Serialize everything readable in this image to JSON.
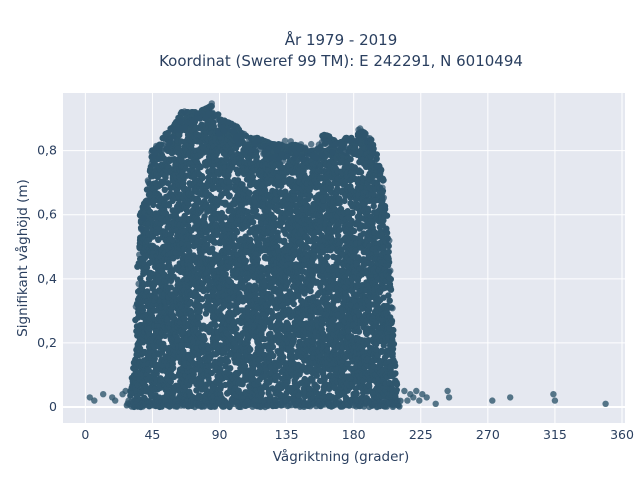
{
  "chart_data": {
    "type": "scatter",
    "title_line1": "År 1979 - 2019",
    "title_line2": "Koordinat (Sweref 99 TM): E 242291, N 6010494",
    "xlabel": "Vågriktning (grader)",
    "ylabel": "Signifikant våghöjd (m)",
    "xlim": [
      -15,
      362
    ],
    "ylim": [
      -0.05,
      0.98
    ],
    "xticks": [
      0,
      45,
      90,
      135,
      180,
      225,
      270,
      315,
      360
    ],
    "xtick_labels": [
      "0",
      "45",
      "90",
      "135",
      "180",
      "225",
      "270",
      "315",
      "360"
    ],
    "yticks": [
      0,
      0.2,
      0.4,
      0.6,
      0.8
    ],
    "ytick_labels": [
      "0",
      "0,2",
      "0,4",
      "0,6",
      "0,8"
    ],
    "grid": true,
    "marker_color": "#2f566d",
    "background_color": "#e5e8f0",
    "envelope": {
      "x": [
        30,
        33,
        34,
        36,
        37,
        40,
        45,
        50,
        55,
        60,
        65,
        70,
        75,
        80,
        85,
        90,
        95,
        100,
        105,
        110,
        115,
        120,
        125,
        130,
        135,
        140,
        145,
        150,
        155,
        160,
        165,
        170,
        175,
        180,
        185,
        190,
        195,
        200,
        204,
        206,
        208,
        210
      ],
      "ymax": [
        0.04,
        0.16,
        0.3,
        0.48,
        0.6,
        0.64,
        0.8,
        0.82,
        0.86,
        0.88,
        0.92,
        0.92,
        0.92,
        0.93,
        0.94,
        0.9,
        0.89,
        0.88,
        0.86,
        0.84,
        0.84,
        0.83,
        0.82,
        0.82,
        0.81,
        0.82,
        0.81,
        0.8,
        0.8,
        0.85,
        0.84,
        0.82,
        0.84,
        0.84,
        0.86,
        0.85,
        0.8,
        0.7,
        0.5,
        0.3,
        0.15,
        0.05
      ]
    },
    "outliers": [
      {
        "x": 3,
        "y": 0.03
      },
      {
        "x": 6,
        "y": 0.02
      },
      {
        "x": 12,
        "y": 0.04
      },
      {
        "x": 18,
        "y": 0.03
      },
      {
        "x": 20,
        "y": 0.02
      },
      {
        "x": 25,
        "y": 0.04
      },
      {
        "x": 27,
        "y": 0.05
      },
      {
        "x": 29,
        "y": 0.02
      },
      {
        "x": 214,
        "y": 0.05
      },
      {
        "x": 216,
        "y": 0.02
      },
      {
        "x": 218,
        "y": 0.04
      },
      {
        "x": 220,
        "y": 0.03
      },
      {
        "x": 222,
        "y": 0.05
      },
      {
        "x": 224,
        "y": 0.02
      },
      {
        "x": 226,
        "y": 0.04
      },
      {
        "x": 229,
        "y": 0.03
      },
      {
        "x": 235,
        "y": 0.01
      },
      {
        "x": 243,
        "y": 0.05
      },
      {
        "x": 244,
        "y": 0.03
      },
      {
        "x": 273,
        "y": 0.02
      },
      {
        "x": 285,
        "y": 0.03
      },
      {
        "x": 314,
        "y": 0.04
      },
      {
        "x": 315,
        "y": 0.02
      },
      {
        "x": 349,
        "y": 0.01
      }
    ]
  }
}
